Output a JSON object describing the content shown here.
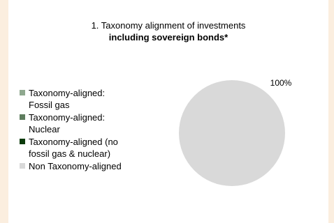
{
  "chart_data": {
    "type": "pie",
    "title": "1. Taxonomy alignment of  investments",
    "subtitle": "including sovereign bonds*",
    "series": [
      {
        "name": "Taxonomy-aligned: Fossil gas",
        "value": 0,
        "color": "#8fa88f"
      },
      {
        "name": "Taxonomy-aligned: Nuclear",
        "value": 0,
        "color": "#5e7d5e"
      },
      {
        "name": "Taxonomy-aligned (no fossil gas & nuclear)",
        "value": 0,
        "color": "#0b3b0b"
      },
      {
        "name": "Non Taxonomy-aligned",
        "value": 100,
        "color": "#d9d9d9"
      }
    ],
    "data_labels": [
      "100%"
    ],
    "legend_position": "left"
  },
  "legend": {
    "items": [
      {
        "line1": "Taxonomy-aligned:",
        "line2": "Fossil gas",
        "color": "#8fa88f"
      },
      {
        "line1": "Taxonomy-aligned:",
        "line2": "Nuclear",
        "color": "#5e7d5e"
      },
      {
        "line1": "Taxonomy-aligned (no",
        "line2": "fossil gas & nuclear)",
        "color": "#0b3b0b"
      },
      {
        "line1": "Non Taxonomy-aligned",
        "line2": "",
        "color": "#d9d9d9"
      }
    ]
  }
}
